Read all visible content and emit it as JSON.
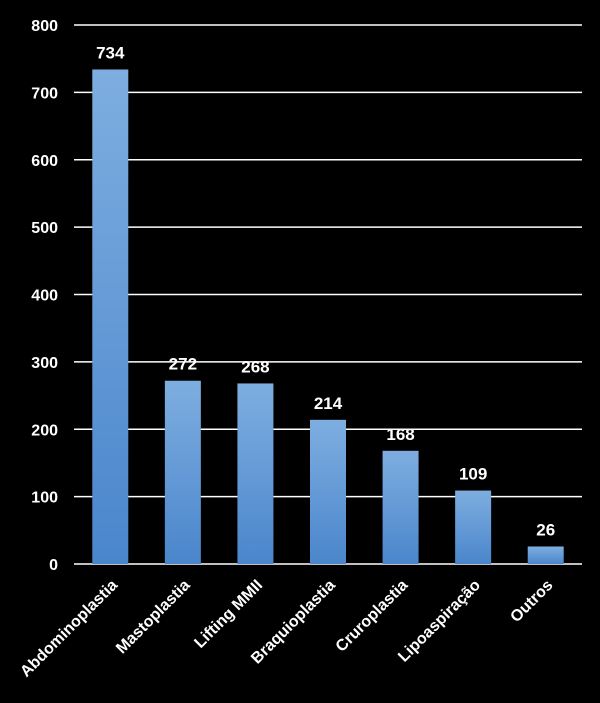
{
  "chart_data": {
    "type": "bar",
    "title": "",
    "xlabel": "",
    "ylabel": "",
    "categories": [
      "Abdominoplastia",
      "Mastoplastia",
      "Lifting MMII",
      "Braquioplastia",
      "Cruroplastia",
      "Lipoaspiração",
      "Outros"
    ],
    "values": [
      734,
      272,
      268,
      214,
      168,
      109,
      26
    ],
    "ylim": [
      0,
      800
    ],
    "yticks": [
      0,
      100,
      200,
      300,
      400,
      500,
      600,
      700,
      800
    ],
    "grid": true,
    "legend": "none",
    "data_labels": true,
    "colors": {
      "background": "#000000",
      "bar_top": "#7eaee0",
      "bar_bottom": "#4a86cc",
      "text": "#ffffff",
      "grid": "#ffffff"
    }
  }
}
